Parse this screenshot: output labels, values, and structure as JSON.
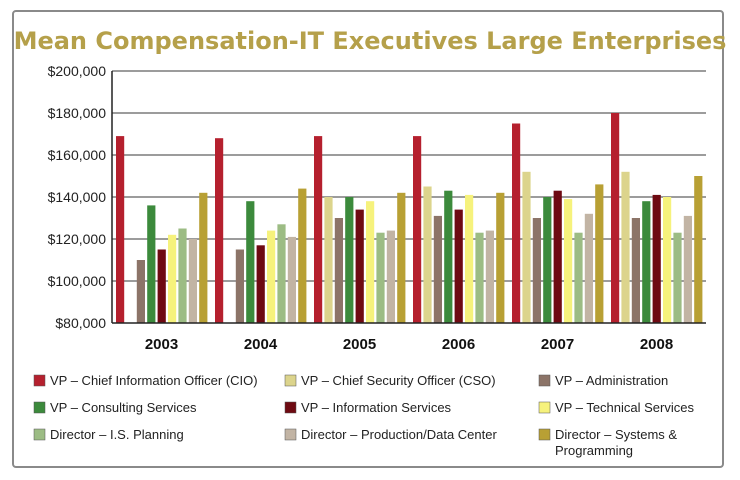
{
  "chart_data": {
    "type": "bar",
    "title": "Mean Compensation-IT Executives Large Enterprises",
    "xlabel": "",
    "ylabel": "",
    "ylim": [
      80000,
      200000
    ],
    "yticks": [
      80000,
      100000,
      120000,
      140000,
      160000,
      180000,
      200000
    ],
    "ytick_labels": [
      "$80,000",
      "$100,000",
      "$120,000",
      "$140,000",
      "$160,000",
      "$180,000",
      "$200,000"
    ],
    "grid": true,
    "categories": [
      "2003",
      "2004",
      "2005",
      "2006",
      "2007",
      "2008"
    ],
    "series": [
      {
        "name": "VP – Chief Information Officer (CIO)",
        "color": "#b5202e",
        "values": [
          169000,
          168000,
          169000,
          169000,
          175000,
          180000
        ]
      },
      {
        "name": "VP – Chief Security Officer (CSO)",
        "color": "#dcd48c",
        "values": [
          null,
          null,
          140000,
          145000,
          152000,
          152000
        ]
      },
      {
        "name": "VP – Administration",
        "color": "#8c7468",
        "values": [
          110000,
          115000,
          130000,
          131000,
          130000,
          130000
        ]
      },
      {
        "name": "VP – Consulting Services",
        "color": "#3c8a3c",
        "values": [
          136000,
          138000,
          140000,
          143000,
          140000,
          138000
        ]
      },
      {
        "name": "VP – Information Services",
        "color": "#6e0a12",
        "values": [
          115000,
          117000,
          134000,
          134000,
          143000,
          141000
        ]
      },
      {
        "name": "VP – Technical Services",
        "color": "#f6f27c",
        "values": [
          122000,
          124000,
          138000,
          141000,
          139000,
          140000
        ]
      },
      {
        "name": "Director – I.S. Planning",
        "color": "#9cbc84",
        "values": [
          125000,
          127000,
          123000,
          123000,
          123000,
          123000
        ]
      },
      {
        "name": "Director – Production/Data Center",
        "color": "#c2b4a4",
        "values": [
          120000,
          121000,
          124000,
          124000,
          132000,
          131000
        ]
      },
      {
        "name": "Director – Systems & Programming",
        "color": "#b8a034",
        "values": [
          142000,
          144000,
          142000,
          142000,
          146000,
          150000
        ]
      }
    ],
    "legend": {
      "placement": "bottom",
      "items": [
        {
          "lines": [
            "VP – Chief Information Officer (CIO)"
          ],
          "color": "#b5202e"
        },
        {
          "lines": [
            "VP – Chief Security Officer (CSO)"
          ],
          "color": "#dcd48c"
        },
        {
          "lines": [
            "VP – Administration"
          ],
          "color": "#8c7468"
        },
        {
          "lines": [
            "VP – Consulting Services"
          ],
          "color": "#3c8a3c"
        },
        {
          "lines": [
            "VP – Information Services"
          ],
          "color": "#6e0a12"
        },
        {
          "lines": [
            "VP – Technical Services"
          ],
          "color": "#f6f27c"
        },
        {
          "lines": [
            "Director – I.S. Planning"
          ],
          "color": "#9cbc84"
        },
        {
          "lines": [
            "Director – Production/Data Center"
          ],
          "color": "#c2b4a4"
        },
        {
          "lines": [
            "Director – Systems &",
            "Programming"
          ],
          "color": "#b8a034"
        }
      ]
    }
  }
}
